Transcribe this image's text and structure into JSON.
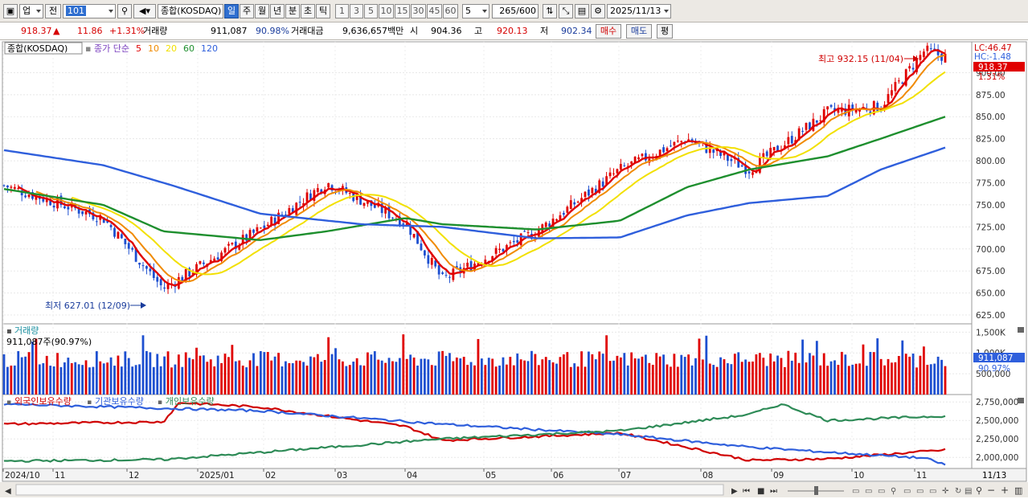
{
  "toolbar": {
    "mode_select": "업",
    "prev_label": "전",
    "code_value": "101",
    "index_name": "종합(KOSDAQ)",
    "periods": [
      "일",
      "주",
      "월",
      "년",
      "분",
      "초",
      "틱"
    ],
    "active_period": "일",
    "intervals": [
      "1",
      "3",
      "5",
      "10",
      "15",
      "30",
      "45",
      "60"
    ],
    "interval_select": "5",
    "count": "265",
    "count_max": "/600",
    "date": "2025/11/13"
  },
  "quote": {
    "last": "918.37",
    "change_arrow": "▲",
    "change": "11.86",
    "change_pct": "+1.31%",
    "volume_label": "거래량",
    "volume": "911,087",
    "volume_ratio": "90.98%",
    "amount_label": "거래대금",
    "amount": "9,636,657백만",
    "open_label": "시",
    "open": "904.36",
    "high_label": "고",
    "high": "920.13",
    "low_label": "저",
    "low": "902.34",
    "buy_label": "매수",
    "sell_label": "매도",
    "eval_label": "평"
  },
  "price_panel": {
    "title": "종합(KOSDAQ)",
    "ma_label": "종가 단순",
    "ma_periods": [
      {
        "label": "5",
        "color": "#e00000"
      },
      {
        "label": "10",
        "color": "#f08a00"
      },
      {
        "label": "20",
        "color": "#f2e000"
      },
      {
        "label": "60",
        "color": "#1e8f2e"
      },
      {
        "label": "120",
        "color": "#2f5fdc"
      }
    ],
    "lc_label": "LC:46.47",
    "hc_label": "HC:-1.48",
    "last_tag": "918.37",
    "last_pct": "1.31%",
    "high_annotation": "최고 932.15 (11/04)",
    "low_annotation": "최저 627.01 (12/09)",
    "y_ticks": [
      "900.00",
      "875.00",
      "850.00",
      "825.00",
      "800.00",
      "775.00",
      "750.00",
      "725.00",
      "700.00",
      "675.00",
      "650.00",
      "625.00"
    ]
  },
  "volume_panel": {
    "title": "거래량",
    "value": "911,087주(90.97%)",
    "y_ticks": [
      "1,500K",
      "1,000K",
      "500,000"
    ],
    "last_tag": "911,087",
    "last_pct": "90.97%"
  },
  "holdings_panel": {
    "legend": [
      {
        "label": "외국인보유수량",
        "color": "#d00000"
      },
      {
        "label": "기관보유수량",
        "color": "#2f5fdc"
      },
      {
        "label": "개인보유수량",
        "color": "#2e8b57"
      }
    ],
    "y_ticks": [
      "2,750,000",
      "2,500,000",
      "2,250,000",
      "2,000,000"
    ]
  },
  "x_axis": {
    "labels": [
      "2024/10",
      "11",
      "12",
      "2025/01",
      "02",
      "03",
      "04",
      "05",
      "06",
      "07",
      "08",
      "09",
      "10",
      "11"
    ],
    "current_date": "11/13"
  },
  "chart_data": [
    {
      "type": "line",
      "title": "종합(KOSDAQ)",
      "series": [
        {
          "name": "종가",
          "x": [
            "2024-10-01",
            "2024-11-13",
            "2024-12-09",
            "2025-01-20",
            "2025-02-18",
            "2025-03-24",
            "2025-04-09",
            "2025-05-20",
            "2025-06-25",
            "2025-07-24",
            "2025-08-20",
            "2025-09-23",
            "2025-10-16",
            "2025-11-04",
            "2025-11-13"
          ],
          "values": [
            772,
            735,
            655,
            722,
            775,
            730,
            665,
            720,
            790,
            825,
            790,
            855,
            862,
            925,
            918
          ]
        },
        {
          "name": "120",
          "x": [
            "2024-10-01",
            "2024-11-13",
            "2024-12-13",
            "2025-01-20",
            "2025-03-05",
            "2025-04-09",
            "2025-05-20",
            "2025-06-25",
            "2025-07-24",
            "2025-08-20",
            "2025-09-23",
            "2025-10-16",
            "2025-11-13"
          ],
          "values": [
            812,
            795,
            772,
            740,
            728,
            725,
            712,
            713,
            738,
            752,
            760,
            790,
            815
          ]
        },
        {
          "name": "60",
          "x": [
            "2024-10-01",
            "2024-11-13",
            "2024-12-09",
            "2025-01-20",
            "2025-02-18",
            "2025-03-24",
            "2025-04-09",
            "2025-05-20",
            "2025-06-25",
            "2025-07-24",
            "2025-08-20",
            "2025-09-23",
            "2025-10-16",
            "2025-11-13"
          ],
          "values": [
            768,
            750,
            720,
            710,
            720,
            735,
            728,
            722,
            732,
            770,
            790,
            805,
            825,
            850
          ]
        }
      ],
      "ylim": [
        615,
        935
      ]
    },
    {
      "type": "bar",
      "title": "거래량",
      "ylim": [
        0,
        1700000
      ]
    },
    {
      "type": "line",
      "series": [
        {
          "name": "외국인보유수량",
          "x": [
            "2024-10-01",
            "2024-11-13",
            "2024-12-09",
            "2024-12-16",
            "2025-01-20",
            "2025-03-24",
            "2025-04-09",
            "2025-06-25",
            "2025-08-20",
            "2025-09-23",
            "2025-11-04",
            "2025-11-13"
          ],
          "values": [
            2450000,
            2470000,
            2480000,
            2740000,
            2680000,
            2420000,
            2230000,
            2330000,
            1960000,
            1980000,
            2080000,
            2100000
          ]
        },
        {
          "name": "기관보유수량",
          "x": [
            "2024-10-01",
            "2025-01-20",
            "2025-04-09",
            "2025-06-25",
            "2025-08-20",
            "2025-09-23",
            "2025-11-04",
            "2025-11-13"
          ],
          "values": [
            2720000,
            2630000,
            2450000,
            2310000,
            2140000,
            2070000,
            1990000,
            1900000
          ]
        },
        {
          "name": "개인보유수량",
          "x": [
            "2024-10-01",
            "2024-12-09",
            "2025-04-09",
            "2025-06-25",
            "2025-08-20",
            "2025-09-03",
            "2025-09-23",
            "2025-11-13"
          ],
          "values": [
            1950000,
            1970000,
            2250000,
            2360000,
            2580000,
            2720000,
            2500000,
            2560000
          ]
        }
      ],
      "ylim": [
        1850000,
        2850000
      ]
    }
  ]
}
